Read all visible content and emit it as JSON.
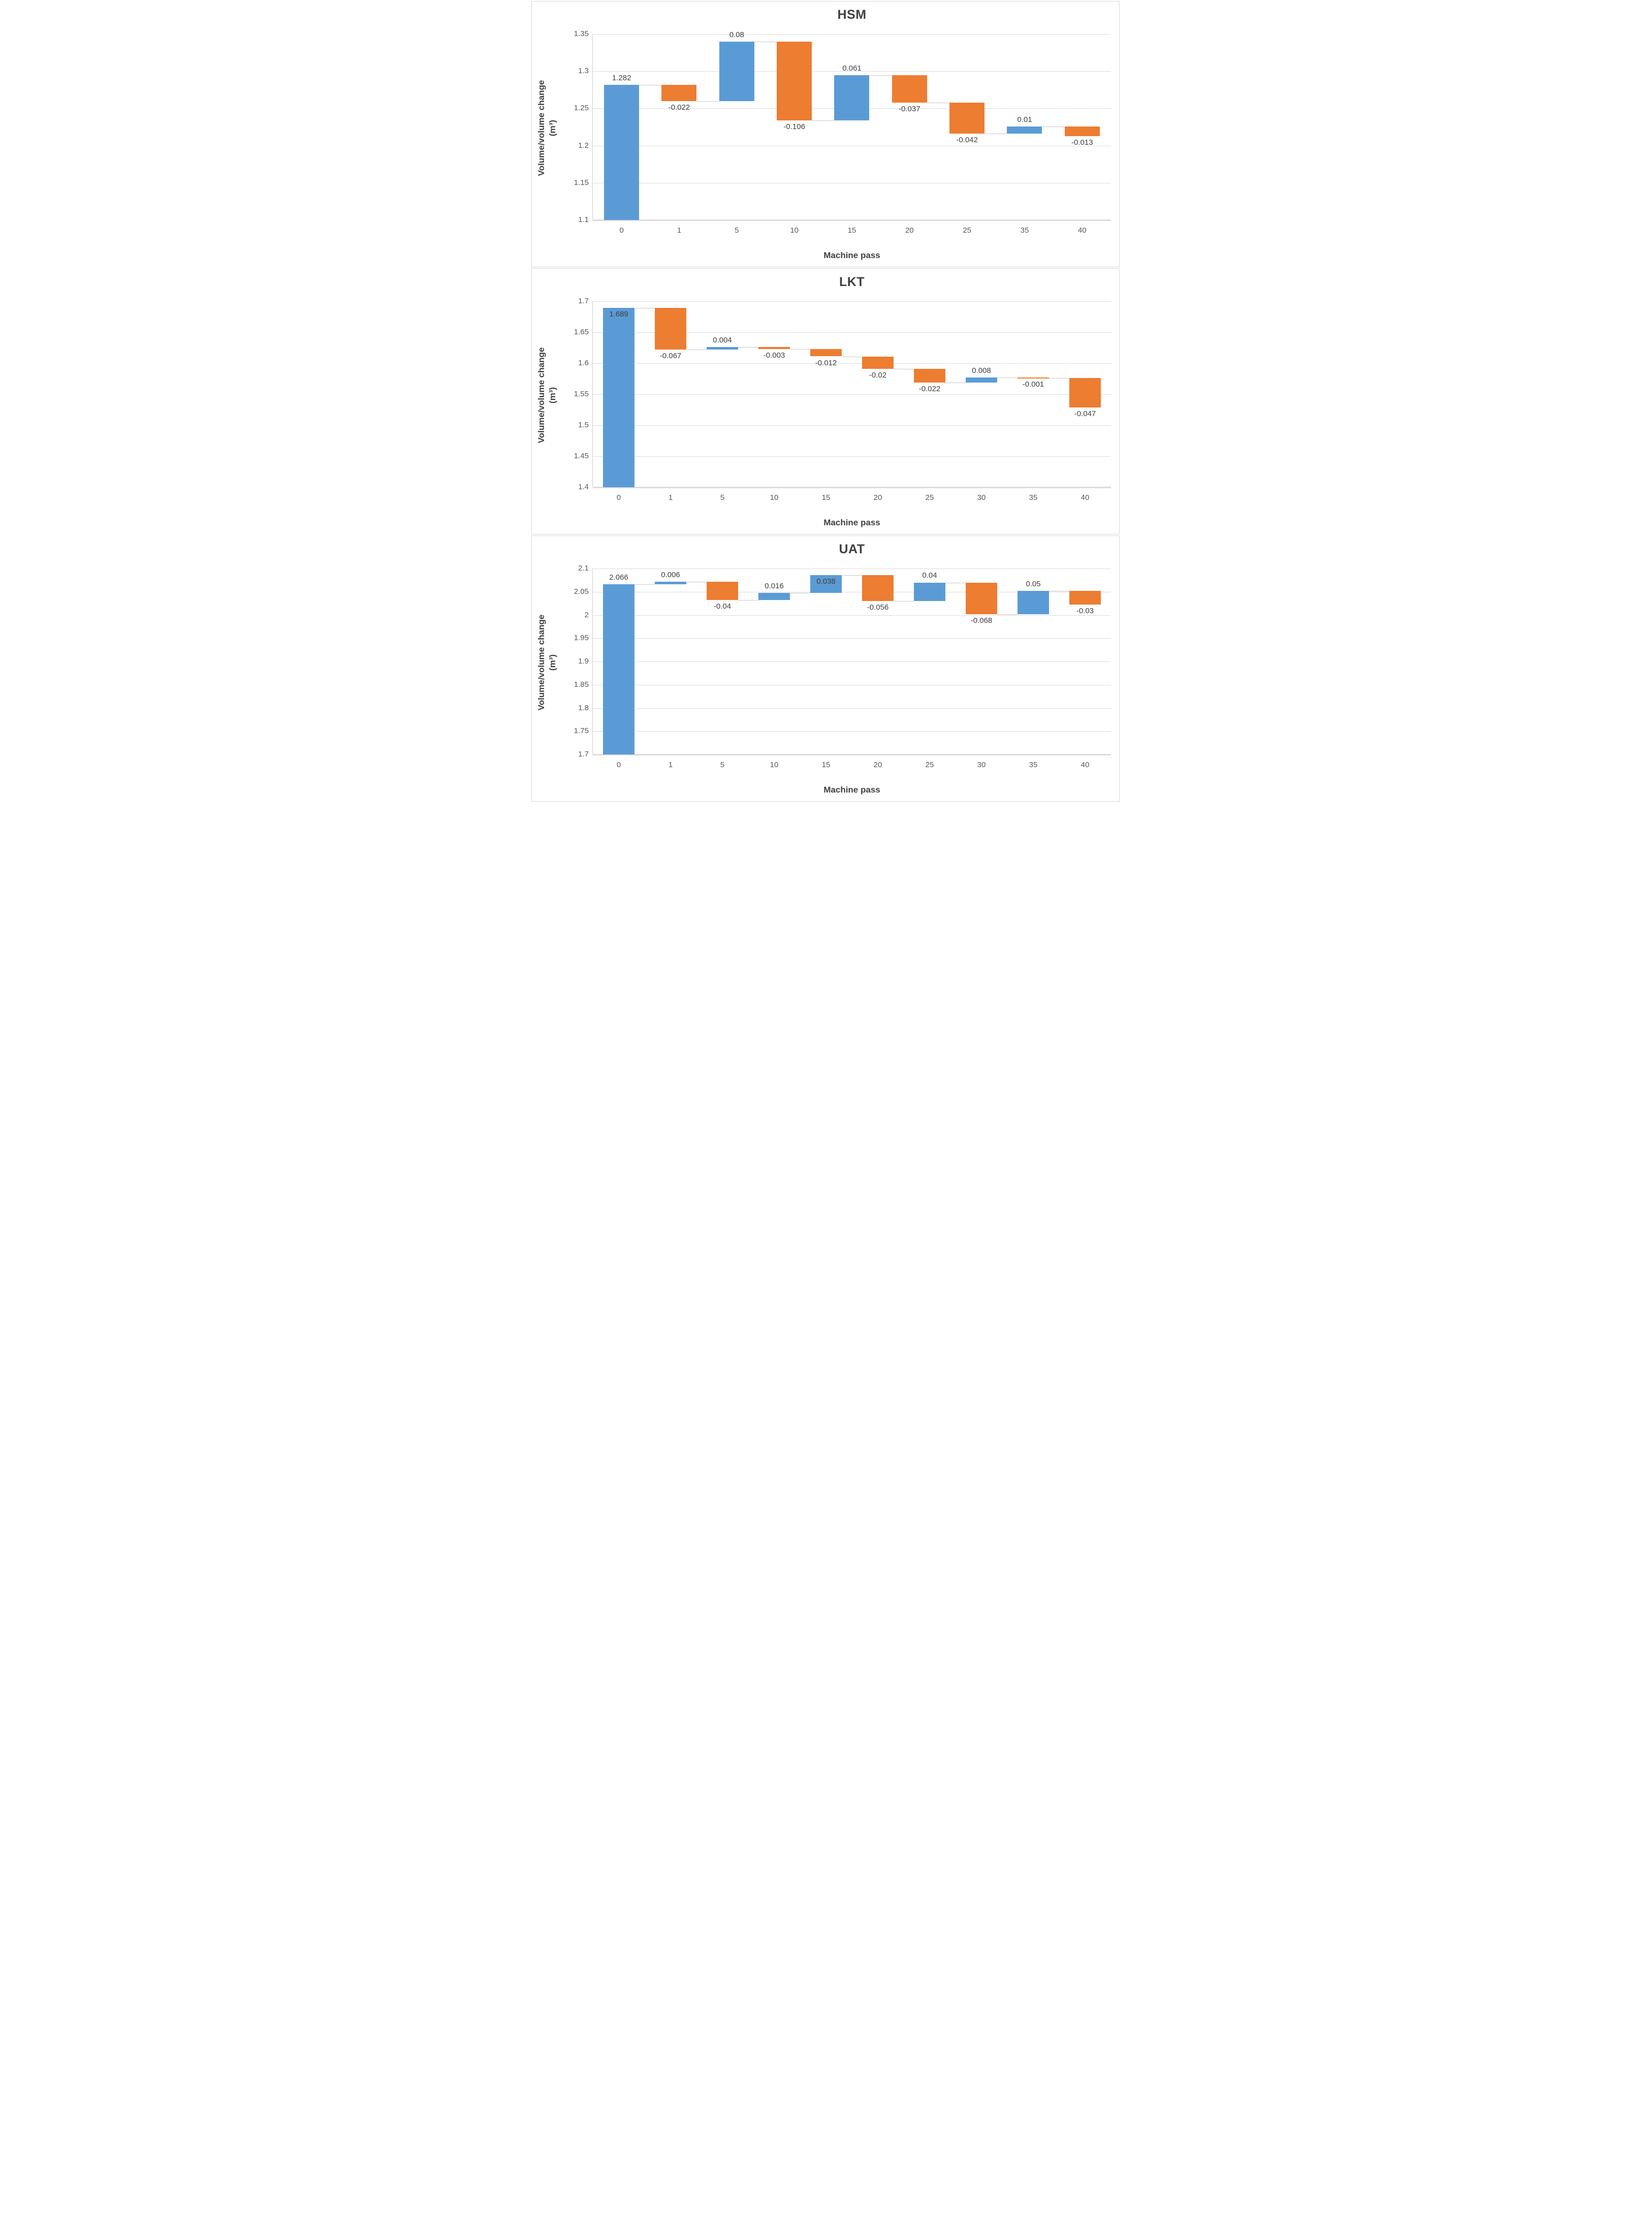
{
  "colors": {
    "increase": "#5B9BD5",
    "decrease": "#ED7D31",
    "gridline": "#DCDCDC",
    "connector": "#C9C9C9",
    "tick_text": "#595959",
    "title_text": "#404040"
  },
  "chart_data": [
    {
      "type": "bar",
      "subtype": "waterfall",
      "title": "HSM",
      "x_axis_title": "Machine pass",
      "y_axis_title": "Volume/volume change",
      "y_axis_unit": "(m³)",
      "categories": [
        "0",
        "1",
        "5",
        "10",
        "15",
        "20",
        "25",
        "35",
        "40"
      ],
      "initial_value": 1.282,
      "changes": [
        null,
        -0.022,
        0.08,
        -0.106,
        0.061,
        -0.037,
        -0.042,
        0.01,
        -0.013
      ],
      "cumulative": [
        1.282,
        1.26,
        1.34,
        1.234,
        1.295,
        1.258,
        1.216,
        1.226,
        1.213
      ],
      "point_labels": [
        "1.282",
        "-0.022",
        "0.08",
        "-0.106",
        "0.061",
        "-0.037",
        "-0.042",
        "0.01",
        "-0.013"
      ],
      "label_positions": [
        "above",
        "below",
        "above",
        "below",
        "above",
        "below",
        "below",
        "above",
        "below"
      ],
      "ylim": [
        1.1,
        1.35
      ],
      "yticks": [
        1.35,
        1.3,
        1.25,
        1.2,
        1.15,
        1.1
      ],
      "ytick_labels": [
        "1.35",
        "1.3",
        "1.25",
        "1.2",
        "1.15",
        "1.1"
      ],
      "grid": true,
      "legend_position": "none"
    },
    {
      "type": "bar",
      "subtype": "waterfall",
      "title": "LKT",
      "x_axis_title": "Machine pass",
      "y_axis_title": "Volume/volume change",
      "y_axis_unit": "(m³)",
      "categories": [
        "0",
        "1",
        "5",
        "10",
        "15",
        "20",
        "25",
        "30",
        "35",
        "40"
      ],
      "initial_value": 1.689,
      "changes": [
        null,
        -0.067,
        0.004,
        -0.003,
        -0.012,
        -0.02,
        -0.022,
        0.008,
        -0.001,
        -0.047
      ],
      "cumulative": [
        1.689,
        1.622,
        1.626,
        1.623,
        1.611,
        1.591,
        1.569,
        1.577,
        1.576,
        1.529
      ],
      "point_labels": [
        "1.689",
        "-0.067",
        "0.004",
        "-0.003",
        "-0.012",
        "-0.02",
        "-0.022",
        "0.008",
        "-0.001",
        "-0.047"
      ],
      "label_positions": [
        "in",
        "below",
        "above",
        "below",
        "below",
        "below",
        "below",
        "above",
        "below",
        "below"
      ],
      "ylim": [
        1.4,
        1.7
      ],
      "yticks": [
        1.7,
        1.65,
        1.6,
        1.55,
        1.5,
        1.45,
        1.4
      ],
      "ytick_labels": [
        "1.7",
        "1.65",
        "1.6",
        "1.55",
        "1.5",
        "1.45",
        "1.4"
      ],
      "grid": true,
      "legend_position": "none"
    },
    {
      "type": "bar",
      "subtype": "waterfall",
      "title": "UAT",
      "x_axis_title": "Machine pass",
      "y_axis_title": "Volume/volume change",
      "y_axis_unit": "(m³)",
      "categories": [
        "0",
        "1",
        "5",
        "10",
        "15",
        "20",
        "25",
        "30",
        "35",
        "40"
      ],
      "initial_value": 2.066,
      "changes": [
        null,
        0.006,
        -0.04,
        0.016,
        0.038,
        -0.056,
        0.04,
        -0.068,
        0.05,
        -0.03
      ],
      "cumulative": [
        2.066,
        2.072,
        2.032,
        2.048,
        2.086,
        2.03,
        2.07,
        2.002,
        2.052,
        2.022
      ],
      "point_labels": [
        "2.066",
        "0.006",
        "-0.04",
        "0.016",
        "0.038",
        "-0.056",
        "0.04",
        "-0.068",
        "0.05",
        "-0.03"
      ],
      "label_positions": [
        "above",
        "above",
        "below",
        "above",
        "in",
        "below",
        "above",
        "below",
        "above",
        "below"
      ],
      "ylim": [
        1.7,
        2.1
      ],
      "yticks": [
        2.1,
        2.05,
        2,
        1.95,
        1.9,
        1.85,
        1.8,
        1.75,
        1.7
      ],
      "ytick_labels": [
        "2.1",
        "2.05",
        "2",
        "1.95",
        "1.9",
        "1.85",
        "1.8",
        "1.75",
        "1.7"
      ],
      "grid": true,
      "legend_position": "none"
    }
  ]
}
